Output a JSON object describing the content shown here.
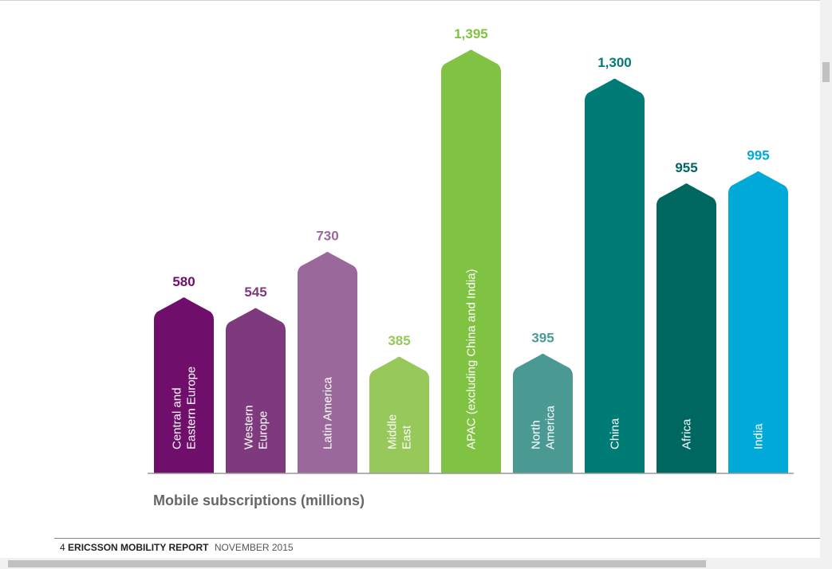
{
  "chart_data": {
    "type": "bar",
    "categories": [
      [
        "Central and",
        "Eastern Europe"
      ],
      [
        "Western",
        "Europe"
      ],
      [
        "Latin America"
      ],
      [
        "Middle",
        "East"
      ],
      [
        "APAC (excluding China and India)"
      ],
      [
        "North",
        "America"
      ],
      [
        "China"
      ],
      [
        "Africa"
      ],
      [
        "India"
      ]
    ],
    "values": [
      580,
      545,
      730,
      385,
      1395,
      395,
      1300,
      955,
      995
    ],
    "value_labels": [
      "580",
      "545",
      "730",
      "385",
      "1,395",
      "395",
      "1,300",
      "955",
      "995"
    ],
    "colors": [
      "#6f0f6b",
      "#7f3a7e",
      "#9b689b",
      "#96c95a",
      "#80c241",
      "#4a9993",
      "#007c76",
      "#006660",
      "#00a9d8"
    ],
    "xlabel": "Mobile subscriptions (millions)",
    "ylim": [
      0,
      1400
    ],
    "grid": false,
    "legend": "none"
  },
  "footer": {
    "page_number": "4",
    "report_title": "ERICSSON MOBILITY REPORT",
    "date": "NOVEMBER 2015"
  }
}
